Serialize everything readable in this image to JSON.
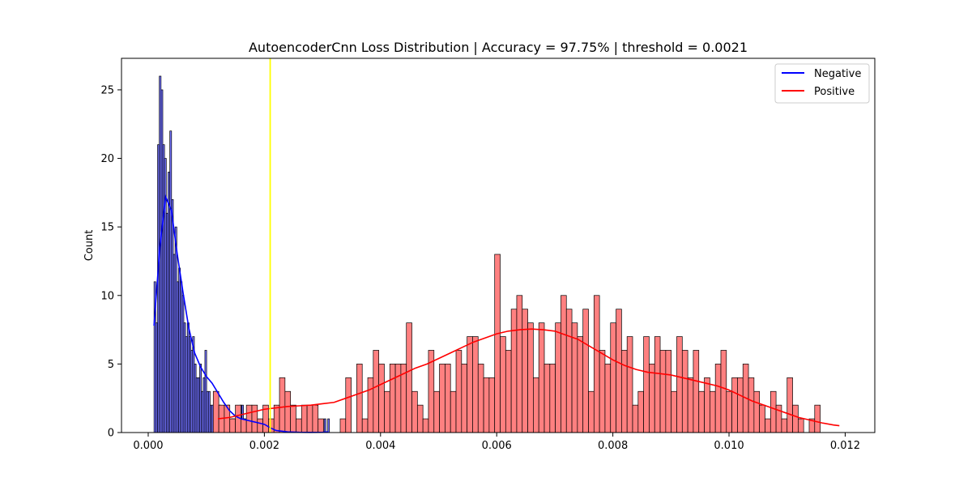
{
  "chart_data": {
    "type": "histogram",
    "title": "AutoencoderCnn Loss Distribution | Accuracy = 97.75% | threshold =  0.0021",
    "xlabel": "",
    "ylabel": "Count",
    "xlim": [
      -0.00046,
      0.01251
    ],
    "ylim": [
      0,
      27.3
    ],
    "xticks": [
      0.0,
      0.002,
      0.004,
      0.006,
      0.008,
      0.01,
      0.012
    ],
    "xtick_labels": [
      "0.000",
      "0.002",
      "0.004",
      "0.006",
      "0.008",
      "0.010",
      "0.012"
    ],
    "yticks": [
      0,
      5,
      10,
      15,
      20,
      25
    ],
    "ytick_labels": [
      "0",
      "5",
      "10",
      "15",
      "20",
      "25"
    ],
    "threshold": {
      "x": 0.0021,
      "color": "#ffff00"
    },
    "legend": {
      "placement": "top-right"
    },
    "series": [
      {
        "name": "Negative",
        "color": "#0000ff",
        "bin_start": 0.0001,
        "bin_width": 3.02e-05,
        "counts": [
          11,
          8,
          21,
          26,
          25,
          21,
          20,
          16,
          19,
          22,
          17,
          13,
          15,
          11,
          12,
          11,
          10,
          8,
          7,
          8,
          7,
          6,
          7,
          5,
          4,
          4,
          5,
          3,
          4,
          6,
          3,
          3,
          2,
          2,
          3,
          3,
          2,
          2,
          1,
          1,
          0,
          1,
          2,
          0,
          1,
          1,
          0,
          1,
          1,
          2,
          2,
          1,
          0,
          1,
          0,
          1,
          1,
          0,
          0,
          0,
          0,
          0,
          0,
          0,
          0,
          0,
          0,
          0,
          0,
          0,
          0,
          0,
          0,
          0,
          0,
          0,
          0,
          0,
          0,
          0,
          0,
          0,
          0,
          0,
          0,
          0,
          0,
          0,
          0,
          0,
          0,
          0,
          0,
          0,
          0,
          0,
          0,
          1,
          0,
          1
        ],
        "kde_x": [
          0.0001,
          0.0002,
          0.0003,
          0.0004,
          0.0005,
          0.0006,
          0.0007,
          0.0008,
          0.0009,
          0.001,
          0.0011,
          0.0012,
          0.0013,
          0.0014,
          0.0015,
          0.0016,
          0.0017,
          0.0018,
          0.0019,
          0.002,
          0.0021,
          0.0022,
          0.0024,
          0.0026,
          0.0028,
          0.003,
          0.0031
        ],
        "kde_y": [
          7.8,
          13.5,
          17.2,
          16.2,
          13.0,
          10.2,
          7.6,
          5.8,
          4.8,
          4.1,
          3.6,
          2.9,
          2.2,
          1.6,
          1.2,
          1.0,
          0.9,
          0.8,
          0.7,
          0.6,
          0.35,
          0.15,
          0.05,
          0.02,
          0.01,
          0.02,
          0.05
        ]
      },
      {
        "name": "Positive",
        "color": "#ff0000",
        "bin_start": 0.00112,
        "bin_width": 9.5e-05,
        "counts": [
          3,
          2,
          2,
          1,
          2,
          1,
          2,
          2,
          1,
          2,
          1,
          2,
          4,
          3,
          2,
          1,
          2,
          2,
          2,
          1,
          0,
          0,
          0,
          1,
          4,
          0,
          5,
          1,
          4,
          6,
          5,
          3,
          5,
          5,
          5,
          8,
          3,
          2,
          1,
          6,
          3,
          5,
          5,
          3,
          6,
          5,
          7,
          7,
          5,
          4,
          4,
          13,
          7,
          6,
          9,
          10,
          9,
          8,
          4,
          8,
          5,
          5,
          8,
          10,
          9,
          8,
          7,
          9,
          3,
          10,
          6,
          5,
          8,
          9,
          6,
          7,
          2,
          3,
          7,
          5,
          7,
          6,
          6,
          3,
          7,
          6,
          4,
          6,
          3,
          4,
          3,
          5,
          6,
          3,
          4,
          4,
          5,
          4,
          3,
          2,
          1,
          3,
          2,
          1,
          4,
          2,
          1,
          0,
          1,
          2
        ],
        "kde_x": [
          0.0012,
          0.0014,
          0.0016,
          0.0018,
          0.002,
          0.0022,
          0.0024,
          0.0026,
          0.0028,
          0.003,
          0.0032,
          0.0034,
          0.0036,
          0.0038,
          0.004,
          0.0042,
          0.0044,
          0.0046,
          0.0048,
          0.005,
          0.0052,
          0.0054,
          0.0056,
          0.0058,
          0.006,
          0.0062,
          0.0064,
          0.0066,
          0.0068,
          0.007,
          0.0072,
          0.0074,
          0.0076,
          0.0078,
          0.008,
          0.0082,
          0.0084,
          0.0086,
          0.0088,
          0.009,
          0.0092,
          0.0094,
          0.0096,
          0.0098,
          0.01,
          0.0102,
          0.0104,
          0.0106,
          0.0108,
          0.011,
          0.0112,
          0.0114,
          0.0116,
          0.0118,
          0.0119
        ],
        "kde_y": [
          1.0,
          1.1,
          1.3,
          1.5,
          1.7,
          1.8,
          1.9,
          1.95,
          2.0,
          2.1,
          2.2,
          2.5,
          2.8,
          3.1,
          3.5,
          3.9,
          4.3,
          4.7,
          5.0,
          5.4,
          5.8,
          6.2,
          6.6,
          6.9,
          7.2,
          7.4,
          7.5,
          7.55,
          7.5,
          7.4,
          7.1,
          6.8,
          6.3,
          5.8,
          5.3,
          4.9,
          4.6,
          4.4,
          4.3,
          4.2,
          4.0,
          3.8,
          3.6,
          3.4,
          3.1,
          2.7,
          2.3,
          2.0,
          1.7,
          1.4,
          1.1,
          0.9,
          0.7,
          0.55,
          0.5
        ]
      }
    ]
  }
}
